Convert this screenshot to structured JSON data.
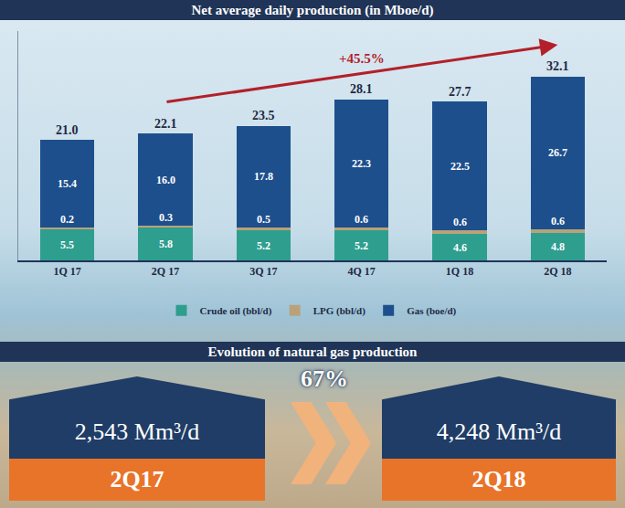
{
  "chart_data": {
    "type": "bar",
    "title": "Net average daily production (in Mboe/d)",
    "stacked": true,
    "categories": [
      "1Q 17",
      "2Q 17",
      "3Q 17",
      "4Q 17",
      "1Q 18",
      "2Q 18"
    ],
    "series": [
      {
        "name": "Crude oil (bbl/d)",
        "color": "#2e9e8f",
        "values": [
          5.5,
          5.8,
          5.2,
          5.2,
          4.6,
          4.8
        ],
        "value_labels": [
          "5.5",
          "5.8",
          "5.2",
          "5.2",
          "4.6",
          "4.8"
        ]
      },
      {
        "name": "LPG (bbl/d)",
        "color": "#b9a27a",
        "values": [
          0.2,
          0.3,
          0.5,
          0.6,
          0.6,
          0.6
        ],
        "value_labels": [
          "0.2",
          "0.3",
          "0.5",
          "0.6",
          "0.6",
          "0.6"
        ]
      },
      {
        "name": "Gas (boe/d)",
        "color": "#1d4f8c",
        "values": [
          15.4,
          16.0,
          17.8,
          22.3,
          22.5,
          26.7
        ],
        "value_labels": [
          "15.4",
          "16.0",
          "17.8",
          "22.3",
          "22.5",
          "26.7"
        ]
      }
    ],
    "totals": [
      21.0,
      22.1,
      23.5,
      28.1,
      27.7,
      32.1
    ],
    "total_labels": [
      "21.0",
      "22.1",
      "23.5",
      "28.1",
      "27.7",
      "32.1"
    ],
    "annotations": [
      {
        "text": "+45.5%",
        "from": "2Q 17",
        "to": "2Q 18"
      }
    ],
    "ylim": [
      0,
      40
    ],
    "yticks": [],
    "tick_labels": "x",
    "grid": false,
    "legend": "bottom",
    "data_labels": true
  },
  "gas_evolution": {
    "title": "Evolution of natural gas production",
    "change": "67%",
    "from": {
      "label": "2,543 Mm³/d",
      "period": "2Q17"
    },
    "to": {
      "label": "4,248 Mm³/d",
      "period": "2Q18"
    }
  }
}
